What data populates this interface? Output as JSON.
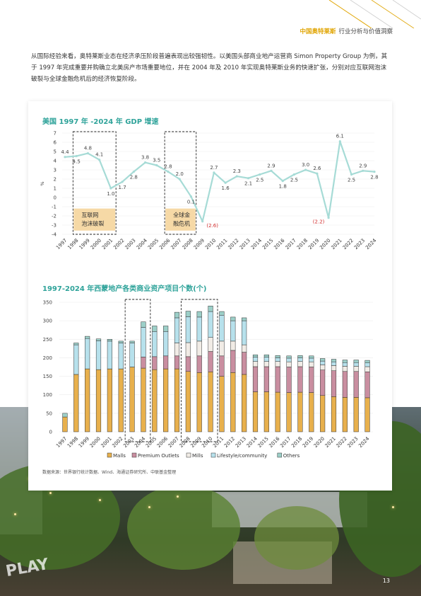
{
  "header": {
    "brand": "中国奥特莱斯",
    "subtitle": "行业分析与价值洞察"
  },
  "intro": "从国际经验来看，奥特莱斯业态在经济承压阶段普遍表现出较强韧性。以美国头部商业地产运营商 Simon Property Group 为例，其于 1997 年完成重要并购确立北美房产市场重要地位，并在 2004 年及 2010 年实现奥特莱斯业务的快速扩张，分别对应互联网泡沫破裂与全球金融危机后的经济恢复阶段。",
  "chart_data": [
    {
      "type": "line",
      "title": "美国 1997 年 -2024 年 GDP 增速",
      "ylabel": "%",
      "ylim": [
        -4,
        7
      ],
      "yticks": [
        -4,
        -3,
        -2,
        -1,
        0,
        1,
        2,
        3,
        4,
        5,
        6,
        7
      ],
      "x": [
        "1997",
        "1998",
        "1999",
        "2000",
        "2001",
        "2002",
        "2003",
        "2004",
        "2005",
        "2006",
        "2007",
        "2008",
        "2009",
        "2010",
        "2011",
        "2012",
        "2013",
        "2014",
        "2015",
        "2016",
        "2017",
        "2018",
        "2019",
        "2020",
        "2021",
        "2022",
        "2023",
        "2024"
      ],
      "values": [
        4.4,
        4.5,
        4.8,
        4.1,
        1.0,
        1.7,
        2.8,
        3.8,
        3.5,
        2.8,
        2.0,
        0.1,
        -2.6,
        2.7,
        1.6,
        2.3,
        2.1,
        2.5,
        2.9,
        1.8,
        2.5,
        3.0,
        2.6,
        -2.2,
        6.1,
        2.5,
        2.9,
        2.8
      ],
      "labels": [
        "4.4",
        "4.5",
        "4.8",
        "4.1",
        "1.0",
        "1.7",
        "2.8",
        "3.8",
        "3.5",
        "2.8",
        "2.0",
        "0.1",
        "(2.6)",
        "2.7",
        "1.6",
        "2.3",
        "2.1",
        "2.5",
        "2.9",
        "1.8",
        "2.5",
        "3.0",
        "2.6",
        "(2.2)",
        "6.1",
        "2.5",
        "2.9",
        "2.8"
      ],
      "line_color": "#a6dbd6",
      "negative_label_color": "#d32f2f",
      "annotations": [
        {
          "label_lines": [
            "互联网",
            "泡沫破裂"
          ],
          "x_start": "1998",
          "x_end": "2001"
        },
        {
          "label_lines": [
            "全球金",
            "融危机"
          ],
          "x_start": "2006",
          "x_end": "2008"
        }
      ],
      "grid": true
    },
    {
      "type": "bar",
      "stacked": true,
      "title": "1997-2024 年西蒙地产各类商业资产项目个数(个)",
      "ylim": [
        0,
        350
      ],
      "yticks": [
        0,
        50,
        100,
        150,
        200,
        250,
        300,
        350
      ],
      "categories": [
        "1997",
        "1998",
        "1999",
        "2000",
        "2001",
        "2002",
        "2003",
        "2004",
        "2005",
        "2006",
        "2007",
        "2008",
        "2009",
        "2010",
        "2011",
        "2012",
        "2013",
        "2014",
        "2015",
        "2016",
        "2017",
        "2018",
        "2019",
        "2020",
        "2021",
        "2022",
        "2023",
        "2024"
      ],
      "series": [
        {
          "name": "Malls",
          "color": "#e8b04c",
          "values": [
            40,
            155,
            170,
            168,
            170,
            170,
            175,
            172,
            168,
            170,
            170,
            163,
            160,
            162,
            150,
            160,
            155,
            108,
            108,
            107,
            106,
            107,
            106,
            98,
            95,
            93,
            93,
            92
          ]
        },
        {
          "name": "Premium Outlets",
          "color": "#c98ea0",
          "values": [
            0,
            0,
            0,
            0,
            0,
            0,
            0,
            30,
            35,
            35,
            35,
            40,
            45,
            55,
            55,
            60,
            60,
            68,
            68,
            69,
            69,
            69,
            69,
            69,
            70,
            70,
            70,
            70
          ]
        },
        {
          "name": "Mills",
          "color": "#f1ece6",
          "values": [
            0,
            0,
            0,
            0,
            0,
            0,
            0,
            0,
            0,
            0,
            35,
            38,
            40,
            38,
            40,
            25,
            20,
            14,
            14,
            14,
            14,
            14,
            14,
            14,
            14,
            14,
            14,
            14
          ]
        },
        {
          "name": "Lifestyle/community",
          "color": "#b7e1ec",
          "values": [
            0,
            80,
            82,
            78,
            75,
            70,
            65,
            80,
            68,
            66,
            68,
            70,
            65,
            70,
            70,
            55,
            65,
            12,
            12,
            10,
            10,
            10,
            10,
            10,
            10,
            10,
            10,
            10
          ]
        },
        {
          "name": "Others",
          "color": "#9ccfc8",
          "values": [
            10,
            5,
            6,
            5,
            5,
            5,
            5,
            15,
            15,
            15,
            15,
            15,
            15,
            15,
            10,
            10,
            8,
            6,
            6,
            6,
            6,
            6,
            6,
            7,
            7,
            7,
            7,
            7
          ]
        }
      ],
      "highlighted_ranges": [
        [
          "2003",
          "2004"
        ],
        [
          "2008",
          "2010"
        ]
      ],
      "grid": true
    }
  ],
  "source": "数据来源：世界银行统计数据、Wind、海通证券研究所、中联基金整理",
  "photo": {
    "sign_text": "PLAY"
  },
  "page_number": "13"
}
